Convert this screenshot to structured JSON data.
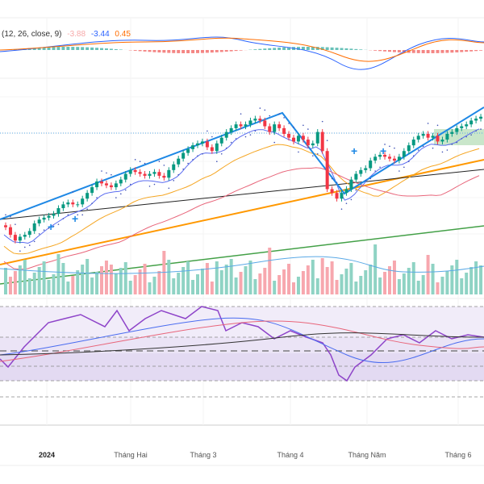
{
  "macd_legend": {
    "params": "(12, 26, close, 9)",
    "histogram": "-3.88",
    "macd": "-3.44",
    "signal": "0.45",
    "colors": {
      "histogram": "#f7a9a9",
      "macd": "#2962ff",
      "signal": "#ff6d00"
    }
  },
  "chart_data": {
    "type": "candlestick",
    "title": "",
    "x_tick_labels": [
      "2024",
      "Tháng Hai",
      "Tháng 3",
      "Tháng 4",
      "Tháng Năm",
      "Tháng 6"
    ],
    "panes": [
      "macd",
      "price",
      "volume",
      "rsi"
    ],
    "price": {
      "close": [
        100,
        96,
        93,
        95,
        96,
        98,
        102,
        104,
        105,
        106,
        107,
        110,
        112,
        113,
        112,
        112,
        115,
        118,
        121,
        124,
        123,
        122,
        121,
        123,
        125,
        128,
        130,
        129,
        128,
        127,
        128,
        129,
        127,
        126,
        130,
        133,
        136,
        139,
        141,
        143,
        144,
        145,
        142,
        140,
        144,
        147,
        150,
        152,
        154,
        153,
        154,
        156,
        157,
        156,
        153,
        150,
        154,
        152,
        149,
        147,
        145,
        148,
        146,
        143,
        144,
        150,
        140,
        120,
        118,
        115,
        118,
        120,
        125,
        128,
        130,
        131,
        135,
        137,
        138,
        137,
        136,
        135,
        137,
        140,
        143,
        146,
        148,
        149,
        147,
        148,
        145,
        146,
        149,
        150,
        152,
        153,
        154,
        156,
        157,
        158
      ],
      "up_color": "#089981",
      "down_color": "#f23645"
    },
    "moving_averages": [
      {
        "name": "MA fast",
        "color": "#5b6cf0"
      },
      {
        "name": "MA 20",
        "color": "#f5a623"
      },
      {
        "name": "MA 50",
        "color": "#e8657a"
      },
      {
        "name": "MA 200",
        "color": "#222222"
      }
    ],
    "trendlines": [
      {
        "name": "orange-support",
        "color": "#ff9800"
      },
      {
        "name": "green-support",
        "color": "#43a047"
      },
      {
        "name": "blue-zigzag",
        "color": "#1e88e5"
      }
    ],
    "volume": {
      "up_color": "#8fd3c4",
      "down_color": "#f7a7ae",
      "ma_color": "#5aa9e6"
    },
    "rsi": {
      "line_color": "#8e44c9",
      "levels": [
        90,
        70,
        50,
        30,
        10,
        -10
      ],
      "band_color": "#ede7f6"
    },
    "macd": {
      "histogram_pos": "#26a69a",
      "histogram_neg": "#ef5350"
    }
  }
}
